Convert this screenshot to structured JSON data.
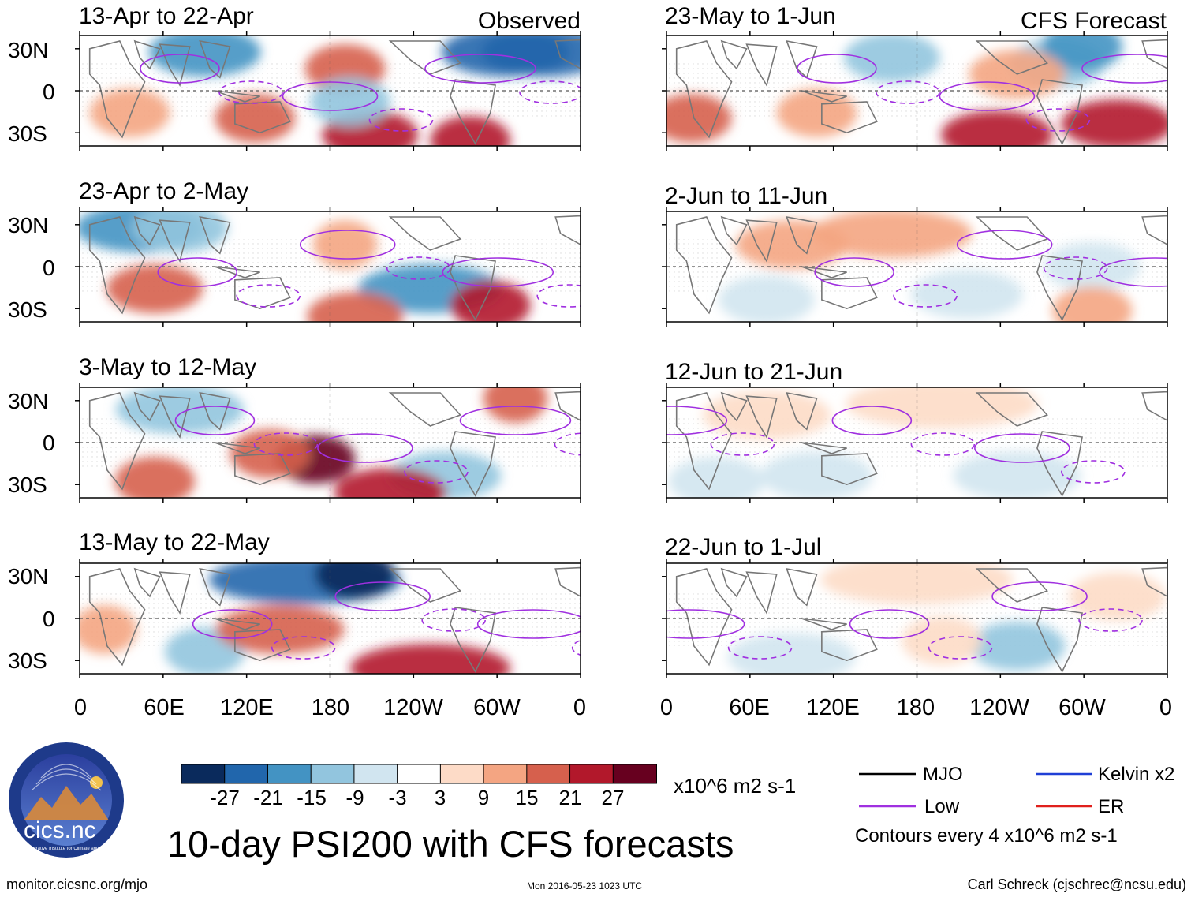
{
  "observed": {
    "label": "Observed",
    "panels": [
      "13-Apr to 22-Apr",
      "23-Apr to 2-May",
      "3-May to 12-May",
      "13-May to 22-May"
    ]
  },
  "forecast": {
    "label": "CFS Forecast",
    "panels": [
      "23-May to 1-Jun",
      "2-Jun to 11-Jun",
      "12-Jun to 21-Jun",
      "22-Jun to 1-Jul"
    ]
  },
  "lat_labels": [
    "30N",
    "0",
    "30S"
  ],
  "lon_labels": [
    "0",
    "60E",
    "120E",
    "180",
    "120W",
    "60W",
    "0"
  ],
  "colorbar": {
    "tick_labels": [
      "-27",
      "-21",
      "-15",
      "-9",
      "-3",
      "3",
      "9",
      "15",
      "21",
      "27"
    ],
    "units": "x10^6 m2 s-1",
    "colors": [
      "#0a2a5c",
      "#2166ac",
      "#4393c3",
      "#92c5de",
      "#d1e5f0",
      "#ffffff",
      "#fddbc7",
      "#f4a582",
      "#d6604d",
      "#b2182b",
      "#67001f"
    ]
  },
  "legend": {
    "items": [
      {
        "label": "MJO",
        "color": "#000000"
      },
      {
        "label": "Kelvin x2",
        "color": "#1f3fd6"
      },
      {
        "label": "Low",
        "color": "#a030e0"
      },
      {
        "label": "ER",
        "color": "#e0201c"
      }
    ],
    "contours_note": "Contours every 4 x10^6 m2 s-1"
  },
  "title": "10-day PSI200 with CFS forecasts",
  "logo_text": "cics.nc",
  "logo_ring_text": "Cooperative Institute for Climate and Satellites",
  "footer": {
    "url": "monitor.cicsnc.org/mjo",
    "timestamp": "Mon 2016-05-23 1023 UTC",
    "author": "Carl Schreck (cjschrec@ncsu.edu)"
  },
  "map_colors": {
    "land": "#777777",
    "contour": "#a030e0",
    "axis": "#000000"
  }
}
